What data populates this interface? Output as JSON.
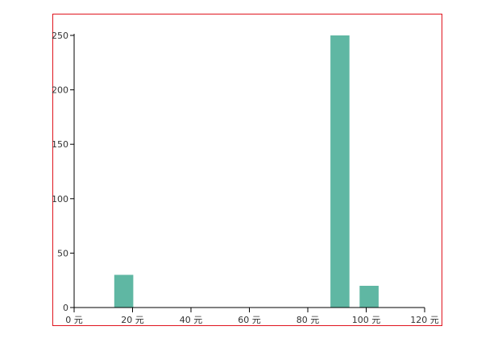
{
  "chart_data": {
    "type": "bar",
    "title": "",
    "xlabel": "",
    "ylabel": "",
    "x_unit": "元",
    "xlim": [
      0,
      120
    ],
    "ylim": [
      0,
      250
    ],
    "x_ticks": [
      0,
      20,
      40,
      60,
      80,
      100,
      120
    ],
    "x_tick_labels": [
      "0 元",
      "20 元",
      "40 元",
      "60 元",
      "80 元",
      "100 元",
      "120 元"
    ],
    "y_ticks": [
      0,
      50,
      100,
      150,
      200,
      250
    ],
    "y_tick_labels": [
      "0",
      "50",
      "100",
      "150",
      "200",
      "250"
    ],
    "bars": [
      {
        "x": 17,
        "value": 30
      },
      {
        "x": 91,
        "value": 250
      },
      {
        "x": 101,
        "value": 20
      }
    ],
    "bar_width": 6.5,
    "bar_color": "#5fb7a3",
    "frame_color": "#e0141e",
    "grid": false,
    "legend": "none"
  }
}
